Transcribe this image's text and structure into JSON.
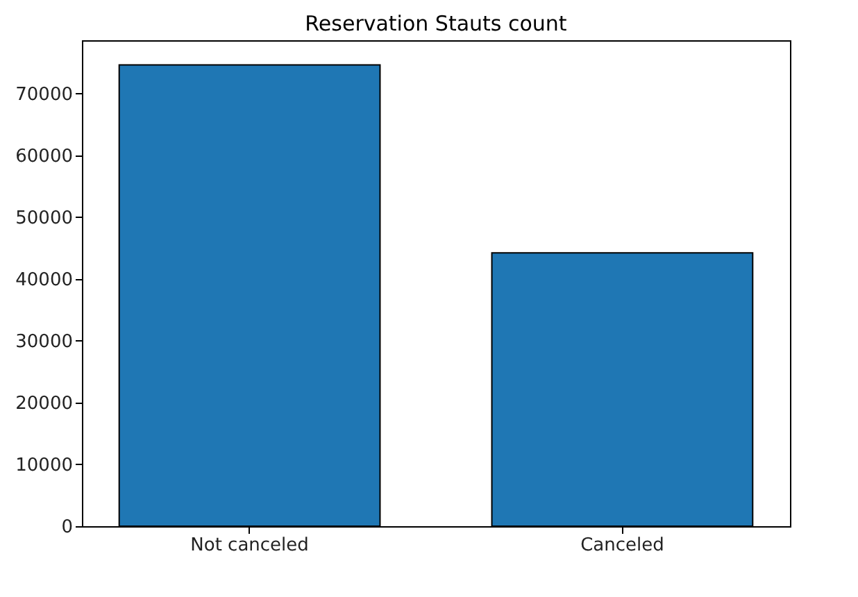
{
  "chart_data": {
    "type": "bar",
    "title": "Reservation Stauts count",
    "categories": [
      "Not canceled",
      "Canceled"
    ],
    "values": [
      74600,
      44200
    ],
    "color": "#1f77b4",
    "ylim": [
      0,
      78600
    ],
    "yticks": [
      0,
      10000,
      20000,
      30000,
      40000,
      50000,
      60000,
      70000
    ],
    "grid": false
  }
}
